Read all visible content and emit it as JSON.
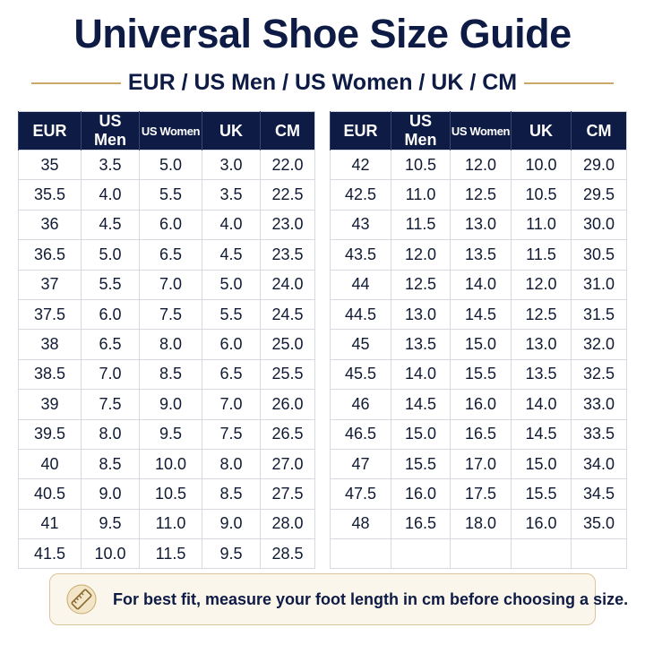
{
  "header": {
    "title": "Universal Shoe Size Guide",
    "subtitle": "EUR / US Men / US Women / UK / CM"
  },
  "tables": [
    {
      "columns": [
        "EUR",
        "US Men",
        "US Women",
        "UK",
        "CM"
      ],
      "rows": [
        [
          "35",
          "3.5",
          "5.0",
          "3.0",
          "22.0"
        ],
        [
          "35.5",
          "4.0",
          "5.5",
          "3.5",
          "22.5"
        ],
        [
          "36",
          "4.5",
          "6.0",
          "4.0",
          "23.0"
        ],
        [
          "36.5",
          "5.0",
          "6.5",
          "4.5",
          "23.5"
        ],
        [
          "37",
          "5.5",
          "7.0",
          "5.0",
          "24.0"
        ],
        [
          "37.5",
          "6.0",
          "7.5",
          "5.5",
          "24.5"
        ],
        [
          "38",
          "6.5",
          "8.0",
          "6.0",
          "25.0"
        ],
        [
          "38.5",
          "7.0",
          "8.5",
          "6.5",
          "25.5"
        ],
        [
          "39",
          "7.5",
          "9.0",
          "7.0",
          "26.0"
        ],
        [
          "39.5",
          "8.0",
          "9.5",
          "7.5",
          "26.5"
        ],
        [
          "40",
          "8.5",
          "10.0",
          "8.0",
          "27.0"
        ],
        [
          "40.5",
          "9.0",
          "10.5",
          "8.5",
          "27.5"
        ],
        [
          "41",
          "9.5",
          "11.0",
          "9.0",
          "28.0"
        ],
        [
          "41.5",
          "10.0",
          "11.5",
          "9.5",
          "28.5"
        ]
      ]
    },
    {
      "columns": [
        "EUR",
        "US Men",
        "US Women",
        "UK",
        "CM"
      ],
      "rows": [
        [
          "42",
          "10.5",
          "12.0",
          "10.0",
          "29.0"
        ],
        [
          "42.5",
          "11.0",
          "12.5",
          "10.5",
          "29.5"
        ],
        [
          "43",
          "11.5",
          "13.0",
          "11.0",
          "30.0"
        ],
        [
          "43.5",
          "12.0",
          "13.5",
          "11.5",
          "30.5"
        ],
        [
          "44",
          "12.5",
          "14.0",
          "12.0",
          "31.0"
        ],
        [
          "44.5",
          "13.0",
          "14.5",
          "12.5",
          "31.5"
        ],
        [
          "45",
          "13.5",
          "15.0",
          "13.0",
          "32.0"
        ],
        [
          "45.5",
          "14.0",
          "15.5",
          "13.5",
          "32.5"
        ],
        [
          "46",
          "14.5",
          "16.0",
          "14.0",
          "33.0"
        ],
        [
          "46.5",
          "15.0",
          "16.5",
          "14.5",
          "33.5"
        ],
        [
          "47",
          "15.5",
          "17.0",
          "15.0",
          "34.0"
        ],
        [
          "47.5",
          "16.0",
          "17.5",
          "15.5",
          "34.5"
        ],
        [
          "48",
          "16.5",
          "18.0",
          "16.0",
          "35.0"
        ]
      ]
    }
  ],
  "footer": {
    "note": "For best fit, measure your foot length in cm before choosing a size."
  }
}
